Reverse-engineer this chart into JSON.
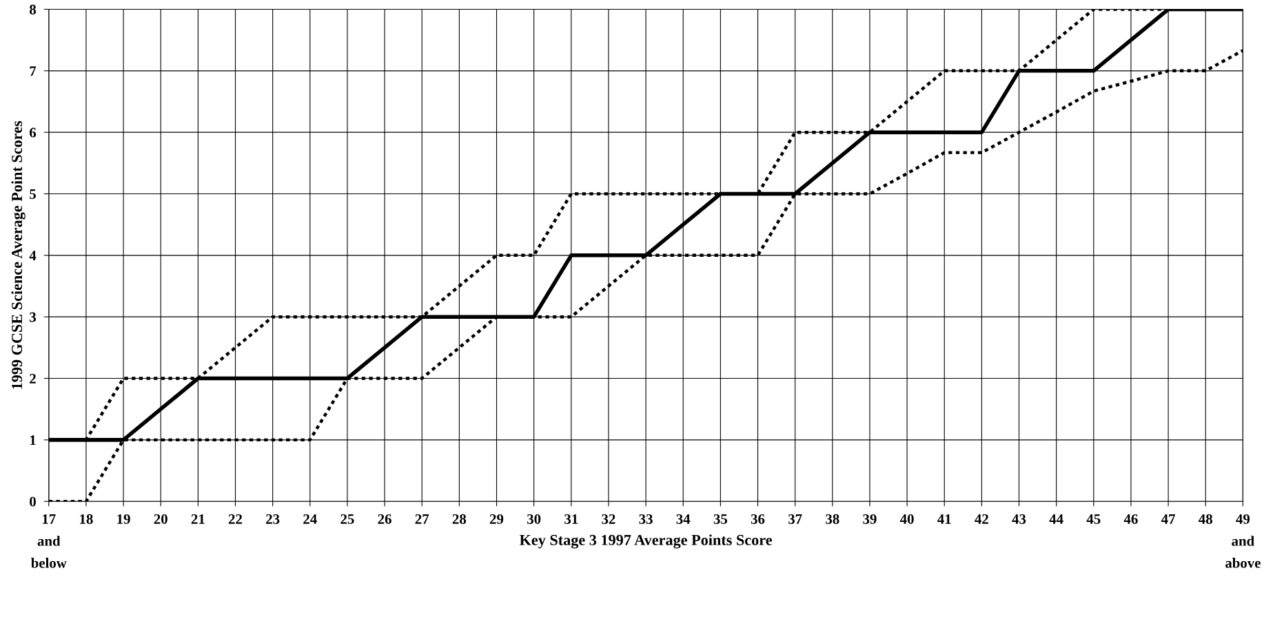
{
  "chart_data": {
    "type": "line",
    "xlabel": "Key Stage 3 1997 Average Points Score",
    "ylabel": "1999 GCSE Science Average Point Scores",
    "x": [
      17,
      18,
      19,
      20,
      21,
      22,
      23,
      24,
      25,
      26,
      27,
      28,
      29,
      30,
      31,
      32,
      33,
      34,
      35,
      36,
      37,
      38,
      39,
      40,
      41,
      42,
      43,
      44,
      45,
      46,
      47,
      48,
      49
    ],
    "series": [
      {
        "color": "#000000",
        "line_style": "dotted",
        "values": [
          1,
          1,
          2,
          2,
          2,
          2.5,
          3,
          3,
          3,
          3,
          3,
          3.5,
          4,
          4,
          5,
          5,
          5,
          5,
          5,
          5,
          6,
          6,
          6,
          6.5,
          7,
          7,
          7,
          7.5,
          8,
          8,
          8,
          8,
          8
        ]
      },
      {
        "color": "#000000",
        "line_style": "dotted",
        "values": [
          0,
          0,
          1,
          1,
          1,
          1,
          1,
          1,
          2,
          2,
          2,
          2.5,
          3,
          3,
          3,
          3.5,
          4,
          4,
          4,
          4,
          5,
          5,
          5,
          5.33,
          5.67,
          5.67,
          6,
          6.33,
          6.67,
          6.83,
          7,
          7,
          7.33
        ]
      },
      {
        "color": "#000000",
        "line_style": "solid",
        "values": [
          1,
          1,
          1,
          1.5,
          2,
          2,
          2,
          2,
          2,
          2.5,
          3,
          3,
          3,
          3,
          4,
          4,
          4,
          4.5,
          5,
          5,
          5,
          5.5,
          6,
          6,
          6,
          6,
          7,
          7,
          7,
          7.5,
          8,
          8,
          8
        ]
      }
    ],
    "xlim": [
      17,
      49
    ],
    "ylim": [
      0,
      8
    ],
    "xticks": [
      {
        "value": 17,
        "label": "17\nand\nbelow"
      },
      18,
      19,
      20,
      21,
      22,
      23,
      24,
      25,
      26,
      27,
      28,
      29,
      30,
      31,
      32,
      33,
      34,
      35,
      36,
      37,
      38,
      39,
      40,
      41,
      42,
      43,
      44,
      45,
      46,
      47,
      48,
      {
        "value": 49,
        "label": "49\nand\nabove"
      }
    ],
    "yticks": [
      0,
      1,
      2,
      3,
      4,
      5,
      6,
      7,
      8
    ],
    "grid": true,
    "legend": false,
    "marker": "none"
  }
}
